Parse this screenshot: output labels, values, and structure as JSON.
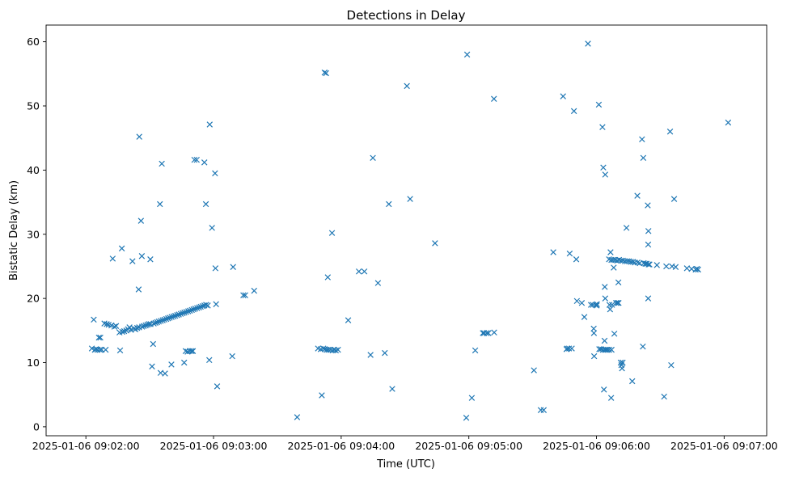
{
  "chart_data": {
    "type": "scatter",
    "title": "Detections in Delay",
    "xlabel": "Time (UTC)",
    "ylabel": "Bistatic Delay (km)",
    "x_unit": "seconds after 2025-01-06 09:02:00 UTC",
    "xlim": [
      -18.7,
      320.0
    ],
    "ylim": [
      -1.4,
      62.6
    ],
    "x_ticks": [
      {
        "value": 0,
        "label": "2025-01-06 09:02:00"
      },
      {
        "value": 60,
        "label": "2025-01-06 09:03:00"
      },
      {
        "value": 120,
        "label": "2025-01-06 09:04:00"
      },
      {
        "value": 180,
        "label": "2025-01-06 09:05:00"
      },
      {
        "value": 240,
        "label": "2025-01-06 09:06:00"
      },
      {
        "value": 300,
        "label": "2025-01-06 09:07:00"
      }
    ],
    "y_ticks": [
      {
        "value": 0,
        "label": "0"
      },
      {
        "value": 10,
        "label": "10"
      },
      {
        "value": 20,
        "label": "20"
      },
      {
        "value": 30,
        "label": "30"
      },
      {
        "value": 40,
        "label": "40"
      },
      {
        "value": 50,
        "label": "50"
      },
      {
        "value": 60,
        "label": "60"
      }
    ],
    "marker": "x",
    "color": "#1f77b4",
    "points": [
      [
        2.8,
        12.2
      ],
      [
        3.7,
        16.7
      ],
      [
        4.2,
        12.0
      ],
      [
        4.8,
        12.1
      ],
      [
        5.5,
        12.0
      ],
      [
        6.1,
        13.9
      ],
      [
        6.6,
        12.0
      ],
      [
        6.8,
        13.9
      ],
      [
        7.4,
        12.0
      ],
      [
        8.7,
        16.1
      ],
      [
        9.3,
        12.0
      ],
      [
        9.8,
        16.0
      ],
      [
        10.7,
        15.9
      ],
      [
        12.0,
        15.8
      ],
      [
        12.6,
        26.2
      ],
      [
        13.4,
        15.6
      ],
      [
        14.2,
        15.7
      ],
      [
        15.8,
        14.7
      ],
      [
        16.1,
        11.9
      ],
      [
        16.9,
        27.8
      ],
      [
        17.1,
        14.8
      ],
      [
        18.0,
        14.9
      ],
      [
        19.0,
        15.0
      ],
      [
        19.8,
        15.2
      ],
      [
        20.5,
        15.5
      ],
      [
        21.2,
        15.1
      ],
      [
        21.9,
        25.8
      ],
      [
        22.6,
        15.3
      ],
      [
        23.3,
        15.2
      ],
      [
        24.1,
        15.4
      ],
      [
        24.8,
        21.4
      ],
      [
        25.0,
        15.5
      ],
      [
        25.1,
        45.2
      ],
      [
        25.9,
        32.1
      ],
      [
        26.3,
        26.6
      ],
      [
        26.4,
        15.6
      ],
      [
        27.2,
        15.7
      ],
      [
        28.1,
        15.8
      ],
      [
        28.9,
        15.9
      ],
      [
        29.6,
        16.0
      ],
      [
        30.3,
        26.1
      ],
      [
        30.4,
        16.0
      ],
      [
        31.1,
        9.4
      ],
      [
        31.6,
        12.9
      ],
      [
        31.9,
        16.1
      ],
      [
        32.7,
        16.2
      ],
      [
        33.5,
        16.3
      ],
      [
        34.3,
        16.4
      ],
      [
        34.8,
        34.7
      ],
      [
        35.1,
        8.4
      ],
      [
        35.2,
        16.5
      ],
      [
        35.7,
        41.0
      ],
      [
        36.1,
        16.6
      ],
      [
        36.9,
        16.7
      ],
      [
        37.2,
        8.3
      ],
      [
        37.8,
        16.8
      ],
      [
        38.6,
        16.9
      ],
      [
        39.4,
        17.0
      ],
      [
        40.2,
        9.7
      ],
      [
        40.3,
        17.1
      ],
      [
        41.2,
        17.2
      ],
      [
        42.0,
        17.3
      ],
      [
        42.9,
        17.4
      ],
      [
        43.7,
        17.5
      ],
      [
        44.6,
        17.6
      ],
      [
        45.5,
        17.7
      ],
      [
        46.2,
        10.0
      ],
      [
        46.3,
        17.8
      ],
      [
        46.9,
        11.8
      ],
      [
        47.2,
        17.9
      ],
      [
        47.8,
        11.7
      ],
      [
        48.1,
        18.0
      ],
      [
        48.8,
        11.8
      ],
      [
        48.9,
        18.1
      ],
      [
        49.7,
        11.8
      ],
      [
        49.8,
        18.2
      ],
      [
        50.3,
        11.8
      ],
      [
        50.6,
        18.3
      ],
      [
        51.0,
        41.6
      ],
      [
        51.4,
        18.4
      ],
      [
        52.1,
        41.6
      ],
      [
        52.3,
        18.5
      ],
      [
        53.2,
        18.6
      ],
      [
        54.0,
        18.7
      ],
      [
        54.9,
        18.8
      ],
      [
        55.7,
        41.2
      ],
      [
        55.7,
        18.9
      ],
      [
        56.4,
        34.7
      ],
      [
        56.5,
        19.0
      ],
      [
        57.3,
        18.9
      ],
      [
        58.0,
        10.4
      ],
      [
        58.2,
        47.1
      ],
      [
        59.3,
        31.0
      ],
      [
        60.7,
        39.5
      ],
      [
        60.9,
        24.7
      ],
      [
        61.2,
        19.1
      ],
      [
        61.7,
        6.3
      ],
      [
        68.8,
        11.0
      ],
      [
        69.2,
        24.9
      ],
      [
        74.0,
        20.5
      ],
      [
        74.9,
        20.5
      ],
      [
        79.1,
        21.2
      ],
      [
        99.3,
        1.5
      ],
      [
        109.1,
        12.2
      ],
      [
        110.4,
        12.1
      ],
      [
        110.9,
        4.9
      ],
      [
        111.6,
        12.2
      ],
      [
        112.2,
        55.2
      ],
      [
        112.3,
        12.1
      ],
      [
        112.9,
        55.1
      ],
      [
        113.2,
        12.0
      ],
      [
        113.7,
        23.3
      ],
      [
        114.0,
        12.0
      ],
      [
        114.9,
        12.0
      ],
      [
        115.7,
        30.2
      ],
      [
        116.0,
        11.9
      ],
      [
        116.7,
        12.0
      ],
      [
        117.5,
        11.9
      ],
      [
        118.5,
        12.0
      ],
      [
        123.3,
        16.6
      ],
      [
        128.3,
        24.2
      ],
      [
        130.9,
        24.2
      ],
      [
        133.8,
        11.2
      ],
      [
        134.9,
        41.9
      ],
      [
        137.3,
        22.4
      ],
      [
        140.5,
        11.5
      ],
      [
        142.4,
        34.7
      ],
      [
        144.0,
        5.9
      ],
      [
        150.9,
        53.1
      ],
      [
        152.4,
        35.5
      ],
      [
        164.1,
        28.6
      ],
      [
        178.8,
        1.4
      ],
      [
        179.2,
        58.0
      ],
      [
        181.4,
        4.5
      ],
      [
        183.0,
        11.9
      ],
      [
        186.6,
        14.6
      ],
      [
        187.2,
        14.6
      ],
      [
        188.4,
        14.6
      ],
      [
        189.2,
        14.6
      ],
      [
        191.8,
        51.1
      ],
      [
        191.9,
        14.7
      ],
      [
        210.6,
        8.8
      ],
      [
        213.8,
        2.6
      ],
      [
        215.2,
        2.6
      ],
      [
        219.7,
        27.2
      ],
      [
        224.3,
        51.5
      ],
      [
        225.9,
        12.1
      ],
      [
        226.3,
        12.2
      ],
      [
        227.1,
        12.2
      ],
      [
        227.4,
        27.0
      ],
      [
        228.4,
        12.2
      ],
      [
        229.4,
        49.2
      ],
      [
        230.5,
        26.1
      ],
      [
        230.8,
        19.6
      ],
      [
        233.1,
        19.3
      ],
      [
        234.3,
        17.1
      ],
      [
        236.0,
        59.7
      ],
      [
        237.4,
        19.0
      ],
      [
        238.3,
        19.0
      ],
      [
        238.7,
        15.3
      ],
      [
        238.8,
        14.6
      ],
      [
        238.9,
        11.0
      ],
      [
        239.5,
        19.0
      ],
      [
        240.1,
        18.9
      ],
      [
        240.2,
        19.1
      ],
      [
        241.1,
        50.2
      ],
      [
        241.3,
        12.1
      ],
      [
        242.1,
        12.1
      ],
      [
        242.8,
        46.7
      ],
      [
        243.0,
        12.0
      ],
      [
        243.2,
        40.4
      ],
      [
        243.5,
        5.8
      ],
      [
        243.8,
        13.4
      ],
      [
        243.9,
        21.8
      ],
      [
        243.9,
        12.0
      ],
      [
        244.1,
        20.0
      ],
      [
        244.1,
        39.3
      ],
      [
        244.5,
        12.0
      ],
      [
        245.2,
        12.0
      ],
      [
        245.9,
        26.1
      ],
      [
        246.0,
        12.0
      ],
      [
        246.1,
        19.0
      ],
      [
        246.4,
        18.3
      ],
      [
        246.6,
        27.2
      ],
      [
        246.9,
        4.5
      ],
      [
        247.0,
        26.0
      ],
      [
        247.1,
        12.0
      ],
      [
        247.3,
        19.0
      ],
      [
        247.9,
        26.0
      ],
      [
        248.1,
        24.8
      ],
      [
        248.4,
        14.5
      ],
      [
        248.8,
        26.0
      ],
      [
        249.2,
        19.3
      ],
      [
        249.7,
        25.9
      ],
      [
        249.9,
        19.3
      ],
      [
        250.3,
        22.5
      ],
      [
        250.4,
        19.3
      ],
      [
        250.6,
        26.0
      ],
      [
        251.4,
        10.0
      ],
      [
        251.5,
        25.9
      ],
      [
        251.7,
        9.6
      ],
      [
        252.0,
        9.1
      ],
      [
        252.3,
        10.0
      ],
      [
        252.4,
        25.9
      ],
      [
        253.4,
        25.8
      ],
      [
        254.1,
        31.0
      ],
      [
        254.4,
        25.8
      ],
      [
        255.3,
        25.8
      ],
      [
        256.2,
        25.7
      ],
      [
        256.8,
        7.1
      ],
      [
        257.1,
        25.7
      ],
      [
        258.0,
        25.6
      ],
      [
        259.2,
        36.0
      ],
      [
        259.3,
        25.6
      ],
      [
        260.3,
        25.5
      ],
      [
        261.4,
        44.8
      ],
      [
        261.8,
        12.5
      ],
      [
        262.0,
        41.9
      ],
      [
        262.2,
        25.5
      ],
      [
        263.0,
        25.4
      ],
      [
        263.6,
        25.4
      ],
      [
        264.1,
        34.5
      ],
      [
        264.3,
        28.4
      ],
      [
        264.3,
        20.0
      ],
      [
        264.4,
        30.5
      ],
      [
        264.5,
        25.3
      ],
      [
        264.9,
        25.3
      ],
      [
        268.4,
        25.2
      ],
      [
        271.8,
        4.7
      ],
      [
        272.8,
        25.0
      ],
      [
        274.6,
        46.0
      ],
      [
        275.1,
        9.6
      ],
      [
        275.5,
        25.0
      ],
      [
        276.5,
        35.5
      ],
      [
        277.2,
        24.9
      ],
      [
        282.5,
        24.7
      ],
      [
        284.7,
        24.6
      ],
      [
        286.6,
        24.5
      ],
      [
        287.2,
        24.6
      ],
      [
        287.8,
        24.5
      ],
      [
        301.9,
        47.4
      ]
    ]
  }
}
